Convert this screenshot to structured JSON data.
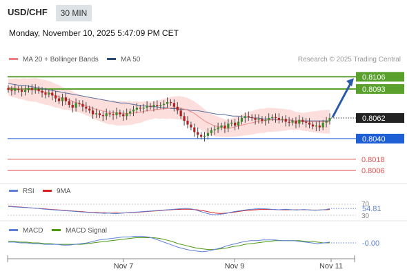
{
  "header": {
    "symbol": "USD/CHF",
    "timeframe": "30 MIN",
    "datetime": "Monday, November 10, 2025 5:47:09 PM CET"
  },
  "legend": {
    "ma20": "MA 20 + Bollinger Bands",
    "ma50": "MA 50",
    "research": "Research © 2025 Trading Central",
    "colors": {
      "ma20": "#f08080",
      "ma50": "#2c4a7a"
    }
  },
  "chart_data": [
    {
      "type": "candlestick",
      "title": "USD/CHF",
      "price_range": [
        0.7995,
        0.8118
      ],
      "x_ticks": [
        "Nov 7",
        "Nov 9",
        "Nov 11"
      ],
      "last_price": "0.8062",
      "levels": [
        {
          "value": 0.8106,
          "label": "0.8106",
          "color": "#5aa02c",
          "kind": "resistance"
        },
        {
          "value": 0.8093,
          "label": "0.8093",
          "color": "#5aa02c",
          "kind": "resistance"
        },
        {
          "value": 0.804,
          "label": "0.8040",
          "color": "#1f5fd6",
          "kind": "pivot"
        },
        {
          "value": 0.8018,
          "label": "0.8018",
          "color": "#e05050",
          "kind": "support"
        },
        {
          "value": 0.8006,
          "label": "0.8006",
          "color": "#e05050",
          "kind": "support"
        }
      ],
      "close_series": [
        0.8092,
        0.8091,
        0.8093,
        0.8092,
        0.809,
        0.8092,
        0.8094,
        0.8092,
        0.8093,
        0.8091,
        0.8089,
        0.8087,
        0.8089,
        0.8086,
        0.8083,
        0.808,
        0.8084,
        0.808,
        0.8076,
        0.8073,
        0.8078,
        0.8077,
        0.8074,
        0.8072,
        0.807,
        0.8066,
        0.8067,
        0.8065,
        0.8064,
        0.8067,
        0.8066,
        0.8065,
        0.8068,
        0.8066,
        0.8064,
        0.8067,
        0.8069,
        0.8071,
        0.8073,
        0.8072,
        0.8073,
        0.8075,
        0.8074,
        0.8076,
        0.8075,
        0.8076,
        0.8077,
        0.8079,
        0.8078,
        0.8074,
        0.807,
        0.8064,
        0.8059,
        0.8055,
        0.8052,
        0.8047,
        0.8044,
        0.8042,
        0.8043,
        0.8046,
        0.8049,
        0.805,
        0.8052,
        0.8054,
        0.8051,
        0.8056,
        0.8057,
        0.8054,
        0.8058,
        0.8062,
        0.8064,
        0.8063,
        0.8062,
        0.806,
        0.8061,
        0.8059,
        0.806,
        0.8062,
        0.8063,
        0.8062,
        0.806,
        0.8061,
        0.8058,
        0.8057,
        0.8059,
        0.8056,
        0.806,
        0.8058,
        0.8057,
        0.8055,
        0.8053,
        0.8054,
        0.8052,
        0.8057,
        0.8059,
        0.8062
      ],
      "ma20": [
        0.8095,
        0.8094,
        0.8094,
        0.8093,
        0.8093,
        0.8092,
        0.8092,
        0.8092,
        0.8091,
        0.809,
        0.8089,
        0.8088,
        0.8086,
        0.8085,
        0.8083,
        0.8082,
        0.8081,
        0.8079,
        0.8078,
        0.8076,
        0.8075,
        0.8074,
        0.8072,
        0.8071,
        0.807,
        0.8069,
        0.8068,
        0.8068,
        0.8067,
        0.8067,
        0.8067,
        0.8067,
        0.8067,
        0.8068,
        0.8068,
        0.8069,
        0.807,
        0.807,
        0.8071,
        0.8071,
        0.8072,
        0.8072,
        0.8073,
        0.8073,
        0.8073,
        0.8072,
        0.8071,
        0.8069,
        0.8067,
        0.8064,
        0.8061,
        0.8058,
        0.8056,
        0.8054,
        0.8053,
        0.8052,
        0.8051,
        0.8051,
        0.8052,
        0.8053,
        0.8054,
        0.8055,
        0.8056,
        0.8057,
        0.8058,
        0.8059,
        0.8059,
        0.806,
        0.806,
        0.806,
        0.806,
        0.806,
        0.806,
        0.806,
        0.8059,
        0.8059,
        0.8058,
        0.8058,
        0.8058,
        0.8058,
        0.8058,
        0.8058,
        0.8058,
        0.8058
      ],
      "ma50": [
        0.8099,
        0.8098,
        0.8097,
        0.8097,
        0.8096,
        0.8095,
        0.8094,
        0.8093,
        0.8092,
        0.8091,
        0.809,
        0.8089,
        0.8088,
        0.8087,
        0.8086,
        0.8085,
        0.8084,
        0.8083,
        0.8082,
        0.8081,
        0.808,
        0.8079,
        0.8078,
        0.8078,
        0.8077,
        0.8076,
        0.8075,
        0.8075,
        0.8074,
        0.8074,
        0.8073,
        0.8073,
        0.8072,
        0.8072,
        0.8071,
        0.8071,
        0.807,
        0.807,
        0.8069,
        0.8068,
        0.8067,
        0.8066,
        0.8066,
        0.8065,
        0.8064,
        0.8064,
        0.8063,
        0.8063,
        0.8062,
        0.8062,
        0.8061,
        0.8061,
        0.8061,
        0.806,
        0.806,
        0.806,
        0.8059,
        0.8059,
        0.8059,
        0.8059,
        0.8059,
        0.8059,
        0.8059,
        0.8059
      ]
    },
    {
      "type": "line",
      "title": "RSI",
      "series": [
        {
          "name": "RSI",
          "color": "#5b7fd6"
        },
        {
          "name": "9MA",
          "color": "#d42020"
        }
      ],
      "y_ticks": [
        "70",
        "30"
      ],
      "ylim": [
        20,
        80
      ],
      "current_value": "54.81",
      "rsi": [
        62,
        61,
        60,
        59,
        58,
        58,
        57,
        56,
        55,
        53,
        52,
        51,
        50,
        49,
        48,
        47,
        46,
        45,
        44,
        43,
        42,
        41,
        40,
        39,
        38,
        38,
        37,
        38,
        37,
        36,
        37,
        38,
        39,
        40,
        41,
        42,
        43,
        44,
        45,
        46,
        47,
        48,
        49,
        50,
        51,
        52,
        53,
        54,
        55,
        54,
        52,
        48,
        44,
        40,
        36,
        33,
        32,
        33,
        35,
        37,
        40,
        43,
        45,
        47,
        49,
        51,
        52,
        53,
        54,
        54,
        53,
        52,
        51,
        50,
        51,
        52,
        51,
        50,
        49,
        50,
        51,
        50,
        49,
        48,
        49,
        50,
        51,
        54
      ],
      "ma9": [
        63,
        62,
        61,
        60,
        59,
        58,
        57,
        56,
        55,
        54,
        53,
        52,
        51,
        50,
        49,
        48,
        47,
        46,
        45,
        44,
        43,
        42,
        41,
        40,
        40,
        39,
        39,
        38,
        38,
        38,
        38,
        38,
        39,
        39,
        40,
        41,
        42,
        43,
        44,
        45,
        46,
        47,
        48,
        49,
        50,
        51,
        51,
        52,
        52,
        52,
        51,
        50,
        48,
        46,
        43,
        40,
        38,
        37,
        37,
        38,
        39,
        41,
        43,
        45,
        47,
        48,
        49,
        50,
        51,
        51,
        51,
        51,
        51,
        50,
        50,
        50,
        50,
        50,
        50,
        50,
        50,
        50,
        49,
        49,
        49,
        50,
        50,
        51
      ]
    },
    {
      "type": "line",
      "title": "MACD",
      "series": [
        {
          "name": "MACD",
          "color": "#5b7fd6"
        },
        {
          "name": "MACD Signal",
          "color": "#4a9a10"
        }
      ],
      "current_value": "-0.00",
      "ylim": [
        -0.0014,
        0.0014
      ],
      "macd": [
        0.0001,
        0.0001,
        0.0,
        0.0,
        -0.0001,
        -0.0001,
        -0.0002,
        -0.0002,
        -0.0002,
        -0.0003,
        -0.0003,
        -0.0002,
        -0.0001,
        0.0,
        0.0002,
        0.0004,
        0.0005,
        0.0006,
        0.0007,
        0.0008,
        0.0008,
        0.0009,
        0.0009,
        0.0008,
        0.0006,
        0.0003,
        0.0,
        -0.0003,
        -0.0006,
        -0.0008,
        -0.001,
        -0.0011,
        -0.0012,
        -0.0011,
        -0.0009,
        -0.0007,
        -0.0004,
        -0.0002,
        0.0,
        0.0002,
        0.0003,
        0.0003,
        0.0004,
        0.0004,
        0.0004,
        0.0003,
        0.0003,
        0.0003,
        0.0002,
        0.0001,
        0.0,
        -0.0001,
        0.0,
        0.0001
      ],
      "signal": [
        0.0002,
        0.0002,
        0.0001,
        0.0001,
        0.0,
        0.0,
        -0.0001,
        -0.0001,
        -0.0002,
        -0.0002,
        -0.0002,
        -0.0002,
        -0.0002,
        -0.0001,
        0.0,
        0.0001,
        0.0002,
        0.0003,
        0.0004,
        0.0005,
        0.0006,
        0.0007,
        0.0007,
        0.0007,
        0.0007,
        0.0006,
        0.0004,
        0.0002,
        -0.0001,
        -0.0003,
        -0.0005,
        -0.0007,
        -0.0008,
        -0.0009,
        -0.0009,
        -0.0008,
        -0.0007,
        -0.0005,
        -0.0004,
        -0.0002,
        -0.0001,
        0.0,
        0.0001,
        0.0002,
        0.0003,
        0.0003,
        0.0003,
        0.0003,
        0.0003,
        0.0002,
        0.0002,
        0.0001,
        0.0,
        0.0
      ]
    }
  ]
}
